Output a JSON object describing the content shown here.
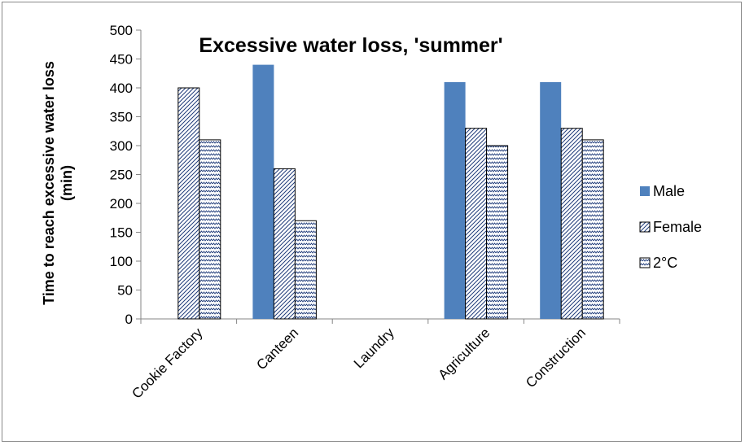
{
  "chart_data": {
    "type": "bar",
    "title": "Excessive water loss, 'summer'",
    "ylabel_line1": "Time to reach excessive water loss",
    "ylabel_line2": "(min)",
    "xlabel": "",
    "categories": [
      "Cookie Factory",
      "Canteen",
      "Laundry",
      "Agriculture",
      "Construction"
    ],
    "ylim": [
      0,
      500
    ],
    "yticks": [
      0,
      50,
      100,
      150,
      200,
      250,
      300,
      350,
      400,
      450,
      500
    ],
    "grid": false,
    "legend_position": "right",
    "series": [
      {
        "name": "Male",
        "pattern": "solid",
        "color": "#4f81bd",
        "values": [
          null,
          440,
          null,
          410,
          410
        ]
      },
      {
        "name": "Female",
        "pattern": "diagonal-stripes",
        "color": "#1f3b7a",
        "values": [
          400,
          260,
          null,
          330,
          330
        ]
      },
      {
        "name": "2°C",
        "pattern": "zigzag",
        "color": "#1f3b7a",
        "values": [
          310,
          170,
          null,
          300,
          310
        ]
      }
    ]
  }
}
